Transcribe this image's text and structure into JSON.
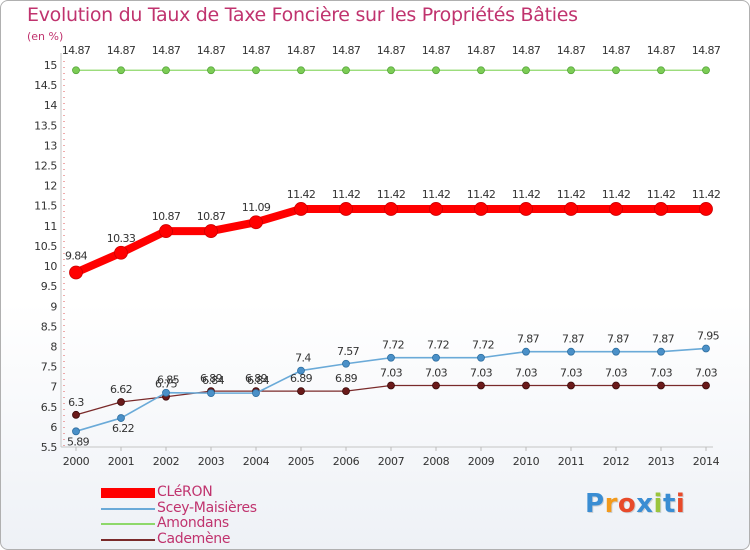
{
  "title": "Evolution du Taux de Taxe Foncière sur les Propriétés Bâties",
  "unit": "(en %)",
  "logo": {
    "letters": [
      "P",
      "r",
      "o",
      "x",
      "i",
      "t",
      "i"
    ],
    "colors": [
      "#3a8dd3",
      "#f39a1b",
      "#e84a2a",
      "#3a8dd3",
      "#9bc53d",
      "#3a8dd3",
      "#e84a2a"
    ]
  },
  "chart_data": {
    "type": "line",
    "title": "Evolution du Taux de Taxe Foncière sur les Propriétés Bâties",
    "ylabel": "(en %)",
    "xlabel": "",
    "ylim": [
      5.5,
      15
    ],
    "grid": false,
    "x": [
      "2000",
      "2001",
      "2002",
      "2003",
      "2004",
      "2005",
      "2006",
      "2007",
      "2008",
      "2009",
      "2010",
      "2011",
      "2012",
      "2013",
      "2014"
    ],
    "yticks": [
      "5.5",
      "6",
      "6.5",
      "7",
      "7.5",
      "8",
      "8.5",
      "9",
      "9.5",
      "10",
      "10.5",
      "11",
      "11.5",
      "12",
      "12.5",
      "13",
      "13.5",
      "14",
      "14.5",
      "15"
    ],
    "series": [
      {
        "name": "CLéRON",
        "color": "#ff0000",
        "values": [
          9.84,
          10.33,
          10.87,
          10.87,
          11.09,
          11.42,
          11.42,
          11.42,
          11.42,
          11.42,
          11.42,
          11.42,
          11.42,
          11.42,
          11.42
        ],
        "labels": [
          "9.84",
          "10.33",
          "10.87",
          "10.87",
          "11.09",
          "11.42",
          "11.42",
          "11.42",
          "11.42",
          "11.42",
          "11.42",
          "11.42",
          "11.42",
          "11.42",
          "11.42"
        ]
      },
      {
        "name": "Scey-Maisières",
        "color": "#6aaad8",
        "values": [
          5.89,
          6.22,
          6.85,
          6.84,
          6.84,
          7.4,
          7.57,
          7.72,
          7.72,
          7.72,
          7.87,
          7.87,
          7.87,
          7.87,
          7.95
        ],
        "labels": [
          "5.89",
          "6.22",
          "6.85",
          "6.84",
          "6.84",
          "7.4",
          "7.57",
          "7.72",
          "7.72",
          "7.72",
          "7.87",
          "7.87",
          "7.87",
          "7.87",
          "7.95"
        ]
      },
      {
        "name": "Amondans",
        "color": "#8ed86a",
        "values": [
          14.87,
          14.87,
          14.87,
          14.87,
          14.87,
          14.87,
          14.87,
          14.87,
          14.87,
          14.87,
          14.87,
          14.87,
          14.87,
          14.87,
          14.87
        ],
        "labels": [
          "14.87",
          "14.87",
          "14.87",
          "14.87",
          "14.87",
          "14.87",
          "14.87",
          "14.87",
          "14.87",
          "14.87",
          "14.87",
          "14.87",
          "14.87",
          "14.87",
          "14.87"
        ]
      },
      {
        "name": "Cademène",
        "color": "#7a2a2a",
        "values": [
          6.3,
          6.62,
          6.75,
          6.89,
          6.89,
          6.89,
          6.89,
          7.03,
          7.03,
          7.03,
          7.03,
          7.03,
          7.03,
          7.03,
          7.03
        ],
        "labels": [
          "6.3",
          "6.62",
          "6.75",
          "6.89",
          "6.89",
          "6.89",
          "6.89",
          "7.03",
          "7.03",
          "7.03",
          "7.03",
          "7.03",
          "7.03",
          "7.03",
          "7.03"
        ]
      }
    ]
  }
}
